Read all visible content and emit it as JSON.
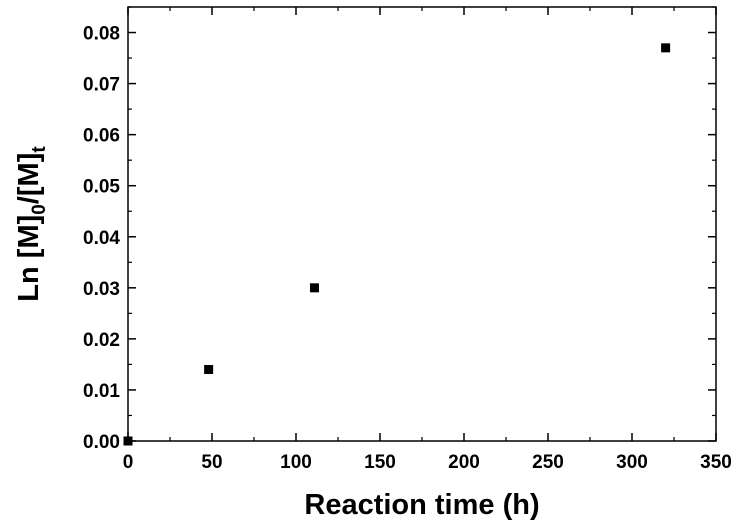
{
  "chart_data": {
    "type": "scatter",
    "xlabel": "Reaction time (h)",
    "ylabel": {
      "parts": [
        "Ln [M]",
        "0",
        "/[M]",
        "t"
      ],
      "full": "Ln [M]0/[M]t"
    },
    "xlim": [
      0,
      350
    ],
    "ylim": [
      0,
      0.085
    ],
    "xticks": [
      "0",
      "50",
      "100",
      "150",
      "200",
      "250",
      "300",
      "350"
    ],
    "yticks": [
      "0.00",
      "0.01",
      "0.02",
      "0.03",
      "0.04",
      "0.05",
      "0.06",
      "0.07",
      "0.08"
    ],
    "grid": false,
    "legend": "none",
    "marker": "square",
    "marker_color": "#000000",
    "series": [
      {
        "points": [
          {
            "x": 0,
            "y": 0.0
          },
          {
            "x": 48,
            "y": 0.014
          },
          {
            "x": 111,
            "y": 0.03
          },
          {
            "x": 320,
            "y": 0.077
          }
        ]
      }
    ]
  }
}
